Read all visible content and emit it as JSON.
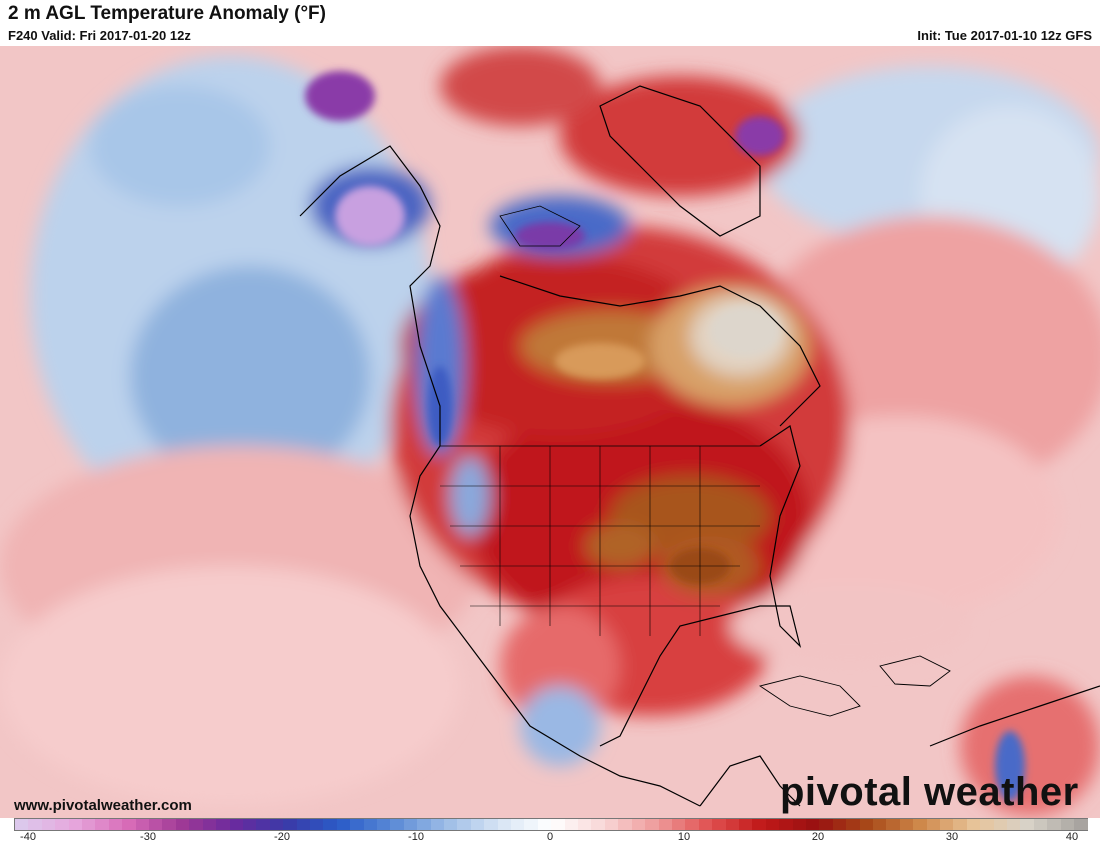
{
  "header": {
    "title": "2 m AGL Temperature Anomaly (°F)",
    "valid": "F240 Valid: Fri 2017-01-20 12z",
    "init": "Init: Tue 2017-01-10 12z GFS"
  },
  "footer": {
    "website": "www.pivotalweather.com",
    "brand": "pivotal weather"
  },
  "colorbar": {
    "ticks": [
      "-40",
      "-30",
      "-20",
      "-10",
      "0",
      "10",
      "20",
      "30",
      "40"
    ],
    "range": [
      -40,
      40
    ],
    "stops": [
      "#dcc8ec",
      "#e6a6dc",
      "#d86cb8",
      "#a03a96",
      "#6a2a9e",
      "#3a3aa8",
      "#2a5cc8",
      "#5a8ad6",
      "#9cbce6",
      "#d6e4f4",
      "#ffffff",
      "#f8d6d6",
      "#ee9a9a",
      "#e05050",
      "#c01818",
      "#981010",
      "#a84a18",
      "#d08a4c",
      "#e8c49a",
      "#d8d2c8",
      "#a8a4a0"
    ]
  },
  "colors": {
    "ocean_cool": "#c4d8ee",
    "ocean_warm": "#f4c4c4",
    "warm_red": "#c8202a",
    "hot_brown": "#a8541e",
    "extreme_tan": "#e6c8a0",
    "cold_blue": "#3e5cc2",
    "very_cold_purple": "#8a3aa8",
    "coastline": "#000000"
  }
}
